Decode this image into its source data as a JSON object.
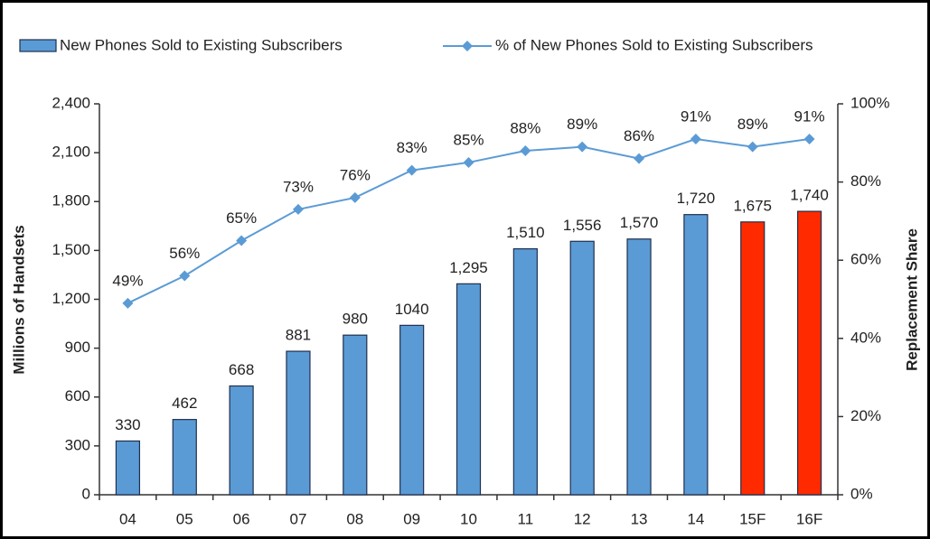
{
  "chart_data": {
    "type": "bar-line",
    "y_label": "Millions of Handsets",
    "y2_label": "Replacement Share",
    "categories": [
      "04",
      "05",
      "06",
      "07",
      "08",
      "09",
      "10",
      "11",
      "12",
      "13",
      "14",
      "15F",
      "16F"
    ],
    "series": [
      {
        "name": "New Phones Sold to Existing Subscribers",
        "type": "bar",
        "color": "#5b9bd5",
        "colors": [
          "#5b9bd5",
          "#5b9bd5",
          "#5b9bd5",
          "#5b9bd5",
          "#5b9bd5",
          "#5b9bd5",
          "#5b9bd5",
          "#5b9bd5",
          "#5b9bd5",
          "#5b9bd5",
          "#5b9bd5",
          "#ff2a00",
          "#ff2a00"
        ],
        "values": [
          330,
          462,
          668,
          881,
          980,
          1040,
          1295,
          1510,
          1556,
          1570,
          1720,
          1675,
          1740
        ],
        "value_labels": [
          "330",
          "462",
          "668",
          "881",
          "980",
          "1040",
          "1,295",
          "1,510",
          "1,556",
          "1,570",
          "1,720",
          "1,675",
          "1,740"
        ]
      },
      {
        "name": "% of New Phones Sold to Existing Subscribers",
        "type": "line",
        "axis": "y2",
        "color": "#5b9bd5",
        "values": [
          49,
          56,
          65,
          73,
          76,
          83,
          85,
          88,
          89,
          86,
          91,
          89,
          91
        ],
        "value_labels": [
          "49%",
          "56%",
          "65%",
          "73%",
          "76%",
          "83%",
          "85%",
          "88%",
          "89%",
          "86%",
          "91%",
          "89%",
          "91%"
        ]
      }
    ],
    "ylim": [
      0,
      2400
    ],
    "yticks": [
      0,
      300,
      600,
      900,
      {
        "value": 1200,
        "label": "1,200"
      },
      {
        "value": 1500,
        "label": "1,500"
      },
      {
        "value": 1800,
        "label": "1,800"
      },
      {
        "value": 2100,
        "label": "2,100"
      },
      {
        "value": 2400,
        "label": "2,400"
      }
    ],
    "y2lim": [
      0,
      100
    ],
    "y2ticks": [
      {
        "value": 0,
        "label": "0%"
      },
      {
        "value": 20,
        "label": "20%"
      },
      {
        "value": 40,
        "label": "40%"
      },
      {
        "value": 60,
        "label": "60%"
      },
      {
        "value": 80,
        "label": "80%"
      },
      {
        "value": 100,
        "label": "100%"
      }
    ],
    "grid": false,
    "legend": "top"
  }
}
